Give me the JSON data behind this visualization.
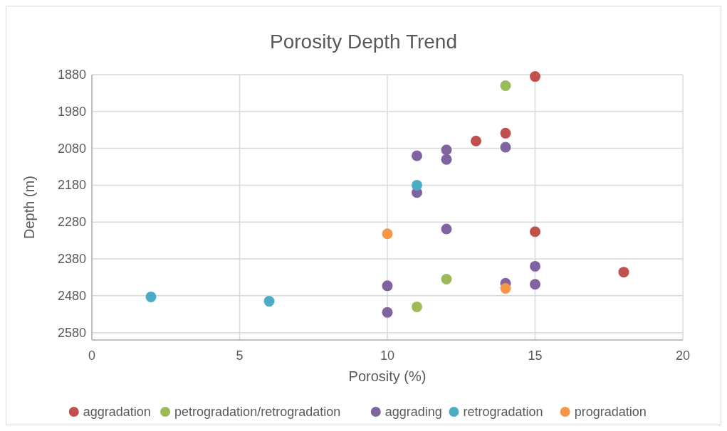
{
  "chart_data": {
    "type": "scatter",
    "title": "Porosity Depth Trend",
    "xlabel": "Porosity (%)",
    "ylabel": "Depth (m)",
    "xlim": [
      0,
      20
    ],
    "xticks": [
      0,
      5,
      10,
      15,
      20
    ],
    "ylim": [
      2600,
      1880
    ],
    "yticks": [
      1880,
      1980,
      2080,
      2180,
      2280,
      2380,
      2480,
      2580
    ],
    "grid": true,
    "legend": "bottom",
    "marker": "circle",
    "series": [
      {
        "name": "aggradation",
        "color": "#c0504d",
        "x": [
          15,
          14,
          13,
          15,
          18
        ],
        "values": [
          1885,
          2039,
          2060,
          2306,
          2416
        ]
      },
      {
        "name": "petrogradation/retrogradation",
        "color": "#9bbb59",
        "x": [
          14,
          12,
          11
        ],
        "values": [
          1910,
          2435,
          2510
        ]
      },
      {
        "name": "aggrading",
        "color": "#8064a2",
        "x": [
          12,
          12,
          11,
          14,
          11,
          12,
          15,
          10,
          14,
          15,
          10
        ],
        "values": [
          2084,
          2110,
          2100,
          2077,
          2200,
          2299,
          2400,
          2453,
          2446,
          2449,
          2525
        ]
      },
      {
        "name": "retrogradation",
        "color": "#4bacc6",
        "x": [
          11,
          2,
          6
        ],
        "values": [
          2180,
          2483,
          2495
        ]
      },
      {
        "name": "progradation",
        "color": "#f79646",
        "x": [
          10,
          14
        ],
        "values": [
          2312,
          2460
        ]
      }
    ]
  }
}
